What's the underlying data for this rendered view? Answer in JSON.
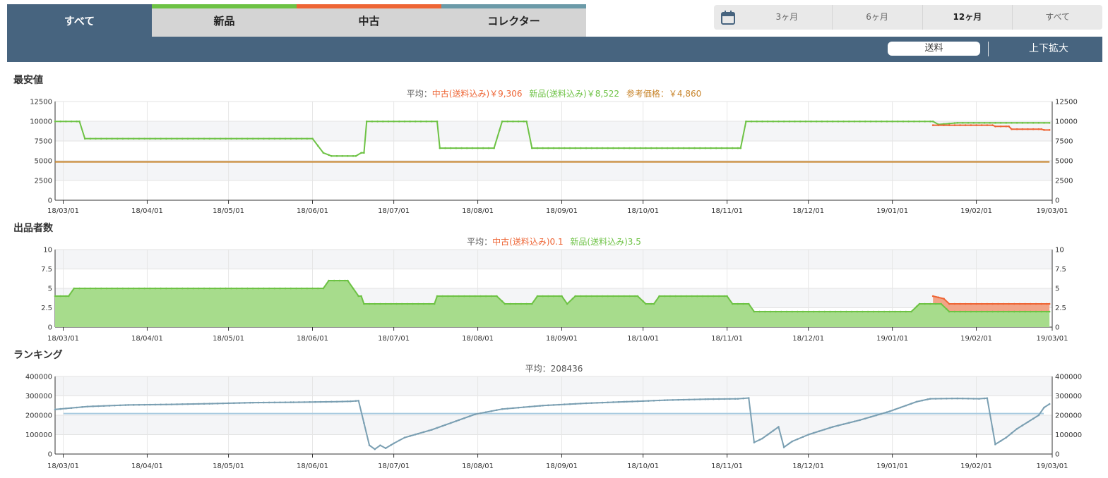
{
  "tabs": [
    {
      "label": "すべて",
      "color": "#47647f",
      "active": true
    },
    {
      "label": "新品",
      "color": "#6dc244"
    },
    {
      "label": "中古",
      "color": "#ee6535"
    },
    {
      "label": "コレクター",
      "color": "#6b9aa8"
    }
  ],
  "range": {
    "icon": "calendar-icon",
    "options": [
      "3ヶ月",
      "6ヶ月",
      "12ヶ月",
      "すべて"
    ],
    "selected": "12ヶ月"
  },
  "controls": {
    "shipping_label": "送料",
    "zoom_label": "上下拡大"
  },
  "colors": {
    "new": "#6dc244",
    "used": "#ee6535",
    "reference": "#c8852c",
    "ranking": "#7a9fb2",
    "ranking_avg": "#a9cbe0",
    "header": "#47647f"
  },
  "date_ticks": [
    "18/03/01",
    "18/04/01",
    "18/05/01",
    "18/06/01",
    "18/07/01",
    "18/08/01",
    "18/09/01",
    "18/10/01",
    "18/11/01",
    "18/12/01",
    "19/01/01",
    "19/02/01",
    "19/03/01"
  ],
  "price": {
    "title": "最安値",
    "avg_prefix": "平均：",
    "avg_used": "中古(送料込み)￥9,306",
    "avg_new": "新品(送料込み)￥8,522",
    "avg_ref": "参考価格：￥4,860"
  },
  "sellers": {
    "title": "出品者数",
    "avg_prefix": "平均：",
    "avg_used": "中古(送料込み)0.1",
    "avg_new": "新品(送料込み)3.5"
  },
  "ranking": {
    "title": "ランキング",
    "avg_text": "平均：208436"
  },
  "chart_data": [
    {
      "type": "line",
      "x_unit": "date",
      "xlim": [
        "2018-02-26",
        "2019-03-01"
      ],
      "ylim": [
        0,
        12500
      ],
      "y_ticks": [
        "0",
        "2500",
        "5000",
        "7500",
        "10000",
        "12500"
      ],
      "series": [
        {
          "name": "新品(送料込み)",
          "color": "#6dc244",
          "points": [
            [
              "2018-02-26",
              9980
            ],
            [
              "2018-03-07",
              9980
            ],
            [
              "2018-03-09",
              7800
            ],
            [
              "2018-06-01",
              7800
            ],
            [
              "2018-06-05",
              6000
            ],
            [
              "2018-06-08",
              5600
            ],
            [
              "2018-06-17",
              5600
            ],
            [
              "2018-06-19",
              6000
            ],
            [
              "2018-06-20",
              6000
            ],
            [
              "2018-06-21",
              9980
            ],
            [
              "2018-07-17",
              9980
            ],
            [
              "2018-07-18",
              6600
            ],
            [
              "2018-08-07",
              6600
            ],
            [
              "2018-08-10",
              9980
            ],
            [
              "2018-08-19",
              9980
            ],
            [
              "2018-08-21",
              6600
            ],
            [
              "2018-11-06",
              6600
            ],
            [
              "2018-11-08",
              9980
            ],
            [
              "2019-01-16",
              9980
            ],
            [
              "2019-01-18",
              9600
            ],
            [
              "2019-01-25",
              9800
            ],
            [
              "2019-02-28",
              9800
            ]
          ]
        },
        {
          "name": "中古(送料込み)",
          "color": "#ee6535",
          "points": [
            [
              "2019-01-16",
              9500
            ],
            [
              "2019-02-07",
              9500
            ],
            [
              "2019-02-08",
              9350
            ],
            [
              "2019-02-13",
              9350
            ],
            [
              "2019-02-14",
              9000
            ],
            [
              "2019-02-25",
              9000
            ],
            [
              "2019-02-26",
              8900
            ],
            [
              "2019-02-28",
              8900
            ]
          ]
        },
        {
          "name": "参考価格",
          "color": "#c8852c",
          "points": [
            [
              "2018-02-26",
              4860
            ],
            [
              "2019-02-28",
              4860
            ]
          ]
        }
      ]
    },
    {
      "type": "area",
      "x_unit": "date",
      "xlim": [
        "2018-02-26",
        "2019-03-01"
      ],
      "ylim": [
        0,
        10
      ],
      "y_ticks": [
        "0",
        "2.5",
        "5",
        "7.5",
        "10"
      ],
      "series": [
        {
          "name": "新品(送料込み)",
          "color": "#6dc244",
          "points": [
            [
              "2018-02-26",
              4
            ],
            [
              "2018-03-03",
              4
            ],
            [
              "2018-03-05",
              5
            ],
            [
              "2018-06-05",
              5
            ],
            [
              "2018-06-07",
              6
            ],
            [
              "2018-06-14",
              6
            ],
            [
              "2018-06-18",
              4
            ],
            [
              "2018-06-19",
              4
            ],
            [
              "2018-06-20",
              3
            ],
            [
              "2018-07-16",
              3
            ],
            [
              "2018-07-17",
              4
            ],
            [
              "2018-08-08",
              4
            ],
            [
              "2018-08-11",
              3
            ],
            [
              "2018-08-21",
              3
            ],
            [
              "2018-08-23",
              4
            ],
            [
              "2018-09-01",
              4
            ],
            [
              "2018-09-03",
              3
            ],
            [
              "2018-09-06",
              4
            ],
            [
              "2018-09-29",
              4
            ],
            [
              "2018-10-02",
              3
            ],
            [
              "2018-10-05",
              3
            ],
            [
              "2018-10-07",
              4
            ],
            [
              "2018-11-01",
              4
            ],
            [
              "2018-11-03",
              3
            ],
            [
              "2018-11-09",
              3
            ],
            [
              "2018-11-11",
              2
            ],
            [
              "2019-01-08",
              2
            ],
            [
              "2019-01-11",
              3
            ],
            [
              "2019-01-19",
              3
            ],
            [
              "2019-01-22",
              2
            ],
            [
              "2019-02-28",
              2
            ]
          ]
        },
        {
          "name": "中古(送料込み)",
          "color": "#ee6535",
          "stacked": true,
          "points": [
            [
              "2019-01-16",
              1
            ],
            [
              "2019-01-20",
              1
            ],
            [
              "2019-01-22",
              1
            ],
            [
              "2019-02-28",
              1
            ]
          ]
        }
      ]
    },
    {
      "type": "line",
      "x_unit": "date",
      "xlim": [
        "2018-02-26",
        "2019-03-01"
      ],
      "ylim": [
        0,
        400000
      ],
      "y_ticks": [
        "0",
        "100000",
        "200000",
        "300000",
        "400000"
      ],
      "average": 208436,
      "series": [
        {
          "name": "ランキング",
          "color": "#7a9fb2",
          "points": [
            [
              "2018-02-26",
              230000
            ],
            [
              "2018-03-10",
              245000
            ],
            [
              "2018-03-25",
              253000
            ],
            [
              "2018-04-10",
              256000
            ],
            [
              "2018-04-25",
              260000
            ],
            [
              "2018-05-10",
              265000
            ],
            [
              "2018-05-25",
              267000
            ],
            [
              "2018-06-10",
              270000
            ],
            [
              "2018-06-15",
              272000
            ],
            [
              "2018-06-18",
              275000
            ],
            [
              "2018-06-22",
              45000
            ],
            [
              "2018-06-24",
              25000
            ],
            [
              "2018-06-26",
              45000
            ],
            [
              "2018-06-28",
              30000
            ],
            [
              "2018-07-01",
              55000
            ],
            [
              "2018-07-05",
              85000
            ],
            [
              "2018-07-10",
              105000
            ],
            [
              "2018-07-15",
              125000
            ],
            [
              "2018-07-20",
              150000
            ],
            [
              "2018-07-25",
              175000
            ],
            [
              "2018-07-31",
              205000
            ],
            [
              "2018-08-10",
              232000
            ],
            [
              "2018-08-25",
              250000
            ],
            [
              "2018-09-10",
              262000
            ],
            [
              "2018-09-25",
              270000
            ],
            [
              "2018-10-10",
              278000
            ],
            [
              "2018-10-25",
              283000
            ],
            [
              "2018-11-05",
              285000
            ],
            [
              "2018-11-09",
              289000
            ],
            [
              "2018-11-11",
              60000
            ],
            [
              "2018-11-14",
              80000
            ],
            [
              "2018-11-18",
              120000
            ],
            [
              "2018-11-20",
              140000
            ],
            [
              "2018-11-22",
              35000
            ],
            [
              "2018-11-25",
              65000
            ],
            [
              "2018-12-01",
              100000
            ],
            [
              "2018-12-10",
              140000
            ],
            [
              "2018-12-20",
              175000
            ],
            [
              "2018-12-31",
              220000
            ],
            [
              "2019-01-10",
              270000
            ],
            [
              "2019-01-15",
              285000
            ],
            [
              "2019-01-25",
              287000
            ],
            [
              "2019-02-02",
              285000
            ],
            [
              "2019-02-05",
              288000
            ],
            [
              "2019-02-08",
              50000
            ],
            [
              "2019-02-12",
              85000
            ],
            [
              "2019-02-16",
              130000
            ],
            [
              "2019-02-20",
              165000
            ],
            [
              "2019-02-24",
              200000
            ],
            [
              "2019-02-26",
              240000
            ],
            [
              "2019-02-28",
              258000
            ]
          ]
        }
      ]
    }
  ]
}
